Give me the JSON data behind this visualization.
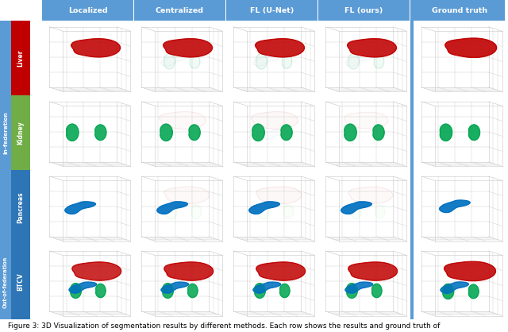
{
  "col_headers": [
    "Localized",
    "Centralized",
    "FL (U-Net)",
    "FL (ours)",
    "Ground truth"
  ],
  "header_bg": "#5b9bd5",
  "liver_label_color": "#c00000",
  "kidney_label_color": "#70ad47",
  "pancreas_label_color": "#2e75b6",
  "btcv_label_color": "#2e75b6",
  "in_fed_color": "#5b9bd5",
  "out_fed_color": "#5b9bd5",
  "separator_color": "#5b9bd5",
  "grid_color": "#c8c8c8",
  "bg_color": "white",
  "caption": "Figure 3: 3D Visualization of segmentation results by different methods. Each row shows the results and ground truth of",
  "caption_fontsize": 6.5
}
